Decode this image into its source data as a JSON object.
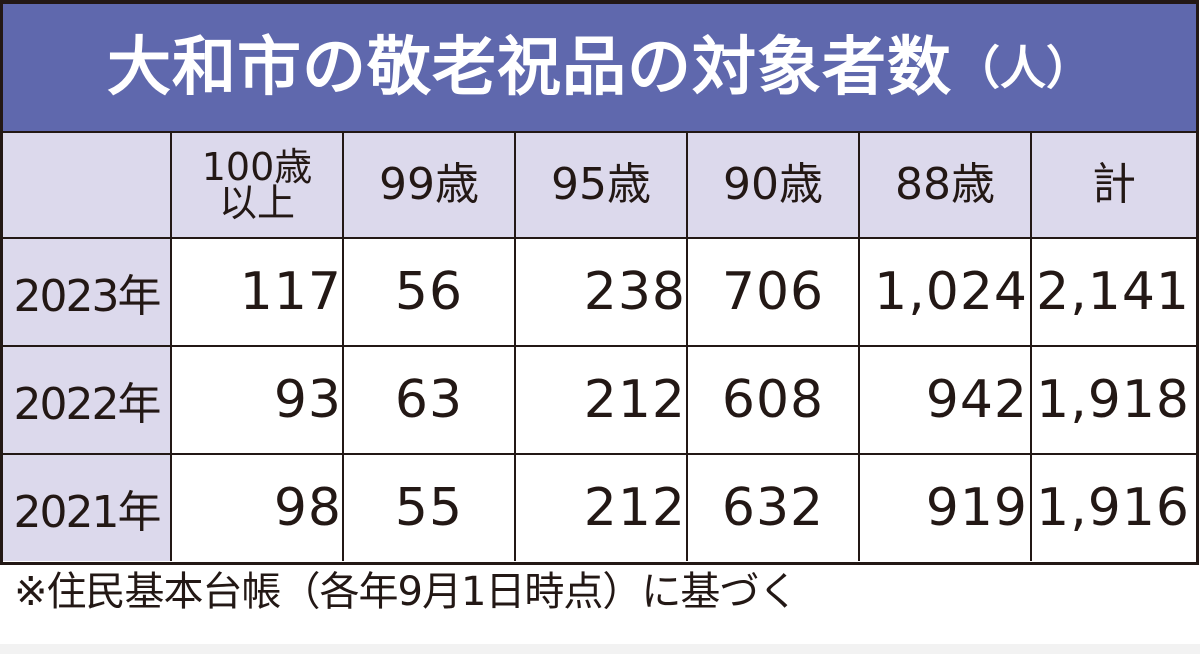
{
  "title": {
    "main": "大和市の敬老祝品の対象者数",
    "unit": "（人）"
  },
  "table": {
    "corner": "",
    "columns": [
      {
        "line1": "100歳",
        "line2": "以上"
      },
      {
        "label": "99歳"
      },
      {
        "label": "95歳"
      },
      {
        "label": "90歳"
      },
      {
        "label": "88歳"
      },
      {
        "label": "計"
      }
    ],
    "rows": [
      {
        "year": "2023年",
        "values": [
          "117",
          "56",
          "238",
          "706",
          "1,024",
          "2,141"
        ]
      },
      {
        "year": "2022年",
        "values": [
          "93",
          "63",
          "212",
          "608",
          "942",
          "1,918"
        ]
      },
      {
        "year": "2021年",
        "values": [
          "98",
          "55",
          "212",
          "632",
          "919",
          "1,916"
        ]
      }
    ]
  },
  "footnote": "※住民基本台帳（各年9月1日時点）に基づく",
  "colors": {
    "title_band": "#5f68ad",
    "header_cell": "#dcd9ec",
    "border": "#231815",
    "text": "#231815"
  },
  "chart_data": {
    "type": "table",
    "title": "大和市の敬老祝品の対象者数（人）",
    "categories": [
      "100歳以上",
      "99歳",
      "95歳",
      "90歳",
      "88歳",
      "計"
    ],
    "series": [
      {
        "name": "2023年",
        "values": [
          117,
          56,
          238,
          706,
          1024,
          2141
        ]
      },
      {
        "name": "2022年",
        "values": [
          93,
          63,
          212,
          608,
          942,
          1918
        ]
      },
      {
        "name": "2021年",
        "values": [
          98,
          55,
          212,
          632,
          919,
          1916
        ]
      }
    ],
    "note": "※住民基本台帳（各年9月1日時点）に基づく"
  }
}
